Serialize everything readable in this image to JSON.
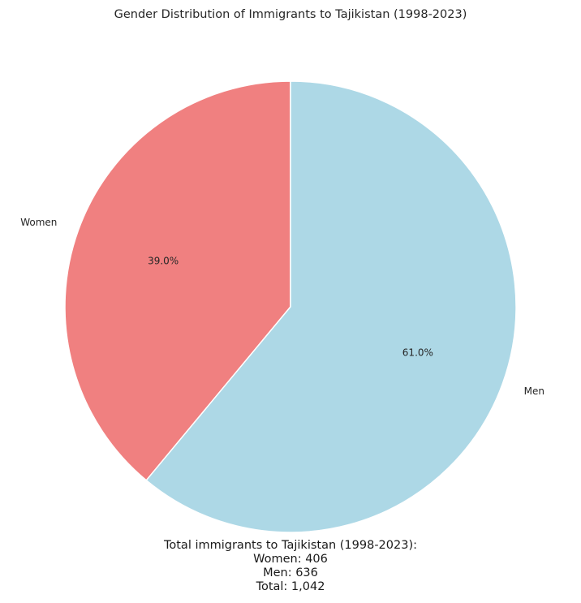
{
  "chart_data": {
    "type": "pie",
    "title": "Gender Distribution of Immigrants to Tajikistan (1998-2023)",
    "start_angle": 90,
    "direction": "counterclockwise",
    "slices": [
      {
        "label": "Women",
        "value": 406,
        "percent_label": "39.0%",
        "color": "#f08080"
      },
      {
        "label": "Men",
        "value": 636,
        "percent_label": "61.0%",
        "color": "#add8e6"
      }
    ],
    "edge_color": "#ffffff"
  },
  "summary": {
    "heading": "Total immigrants to Tajikistan (1998-2023):",
    "women": "Women: 406",
    "men": "Men: 636",
    "total": "Total: 1,042"
  }
}
